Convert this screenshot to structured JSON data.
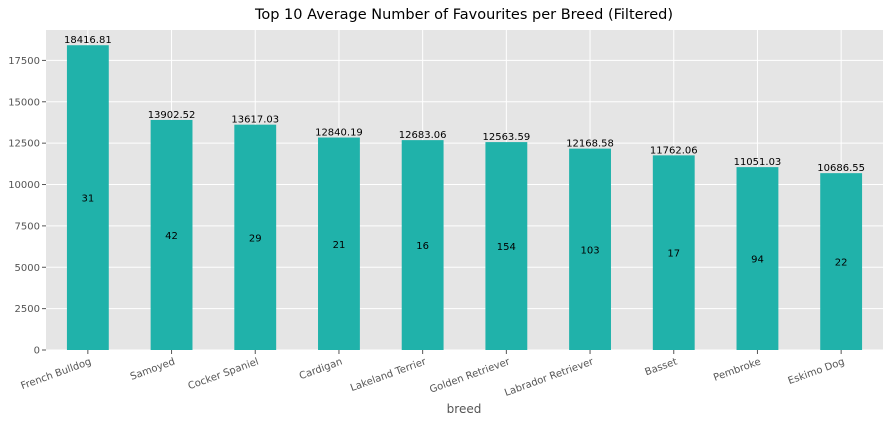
{
  "chart_data": {
    "type": "bar",
    "title": "Top 10 Average Number of Favourites per Breed (Filtered)",
    "xlabel": "breed",
    "ylabel": "",
    "categories": [
      "French Bulldog",
      "Samoyed",
      "Cocker Spaniel",
      "Cardigan",
      "Lakeland Terrier",
      "Golden Retriever",
      "Labrador Retriever",
      "Basset",
      "Pembroke",
      "Eskimo Dog"
    ],
    "values": [
      18416.81,
      13902.52,
      13617.03,
      12840.19,
      12683.06,
      12563.59,
      12168.58,
      11762.06,
      11051.03,
      10686.55
    ],
    "value_labels": [
      "18416.81",
      "13902.52",
      "13617.03",
      "12840.19",
      "12683.06",
      "12563.59",
      "12168.58",
      "11762.06",
      "11051.03",
      "10686.55"
    ],
    "inner_labels": [
      "31",
      "42",
      "29",
      "21",
      "16",
      "154",
      "103",
      "17",
      "94",
      "22"
    ],
    "ylim": [
      0,
      19337.65
    ],
    "yticks": [
      0,
      2500,
      5000,
      7500,
      10000,
      12500,
      15000,
      17500
    ],
    "grid": true,
    "colors": {
      "bar": "#20b2aa",
      "background": "#e5e5e5",
      "grid": "#ffffff"
    }
  }
}
